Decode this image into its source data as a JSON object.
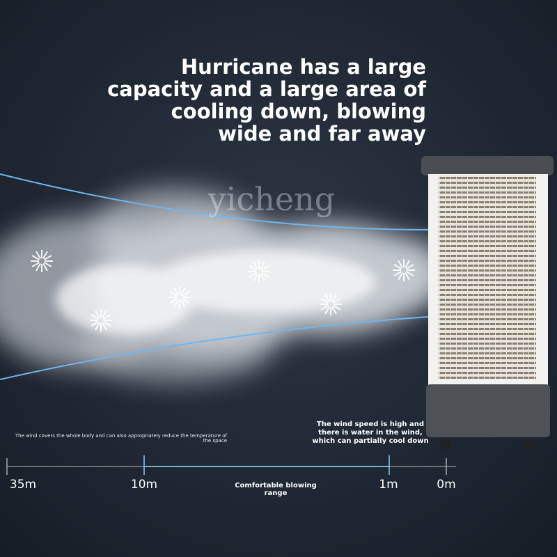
{
  "headline": [
    "Hurricane has a large",
    "capacity and a large area of",
    "cooling down, blowing",
    "wide and far away"
  ],
  "watermark": "yicheng",
  "left_caption": [
    "The wind covers the whole body and can also appropriately reduce the temperature of",
    "the space"
  ],
  "right_caption": [
    "The wind speed is high and",
    "there is water in the wind,",
    "which can partially cool down"
  ],
  "scale": {
    "labels": [
      "35m",
      "10m",
      "1m",
      "0m"
    ],
    "range_label": [
      "Comfortable blowing",
      "range"
    ]
  }
}
